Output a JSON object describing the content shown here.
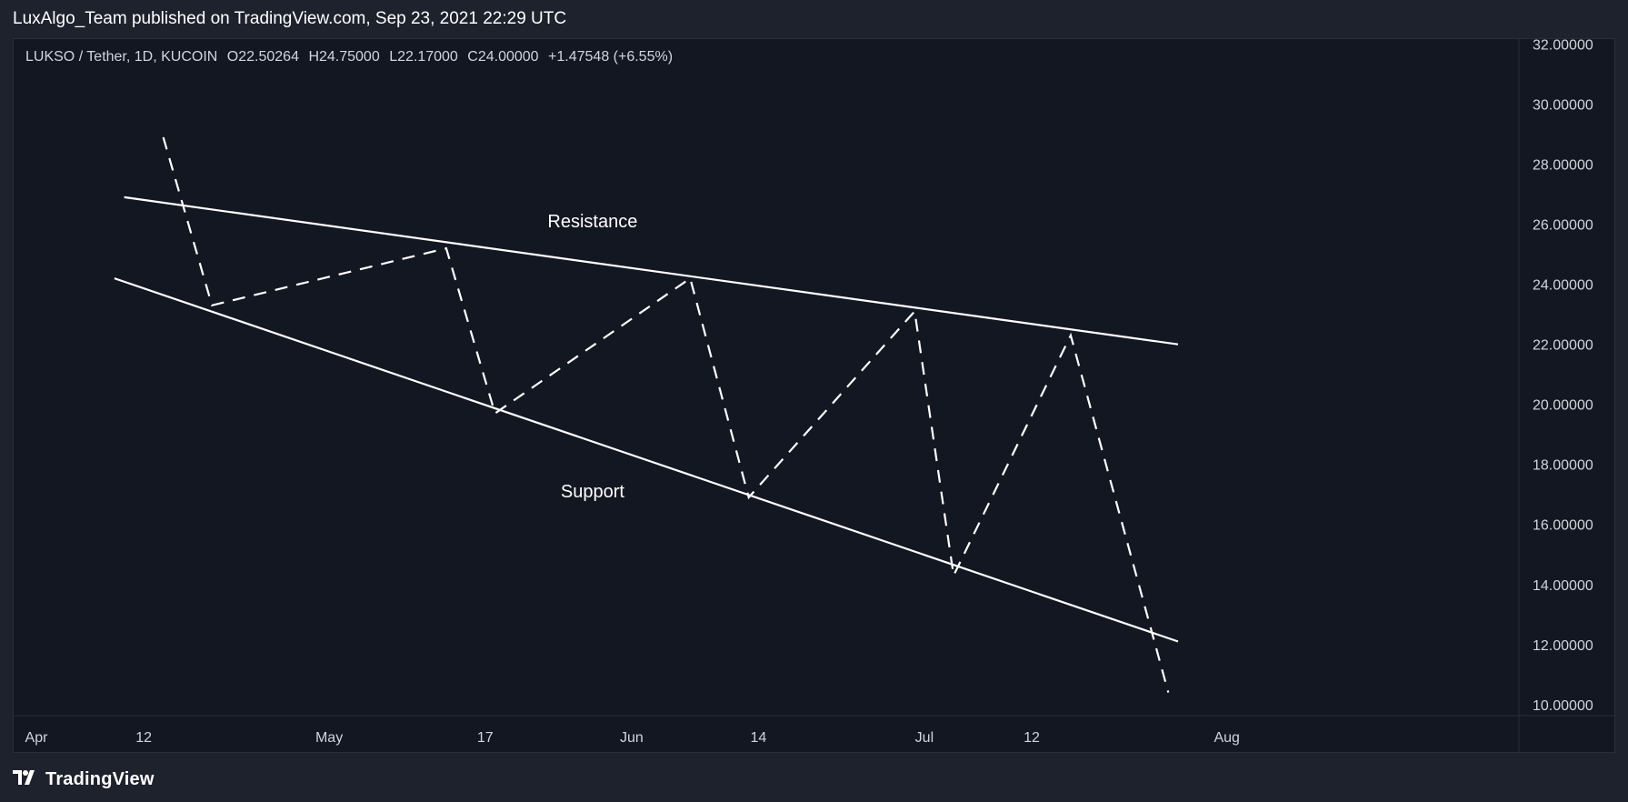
{
  "header": {
    "published_by": "LuxAlgo_Team published on TradingView.com, Sep 23, 2021 22:29 UTC"
  },
  "legend": {
    "symbol": "LUKSO / Tether, 1D, KUCOIN",
    "open": "O22.50264",
    "high": "H24.75000",
    "low": "L22.17000",
    "close": "C24.00000",
    "change": "+1.47548 (+6.55%)"
  },
  "footer": {
    "brand": "TradingView",
    "logo_icon": "tradingview-logo-icon"
  },
  "colors": {
    "background": "#131722",
    "outer": "#1e222d",
    "text": "#d1d4dc",
    "lines": "#ffffff"
  },
  "chart_data": {
    "type": "line",
    "x_axis": {
      "start": "2021-04-01",
      "end": "2021-08-15",
      "tick_labels": [
        {
          "label": "Apr",
          "date": "2021-04-01"
        },
        {
          "label": "12",
          "date": "2021-04-12"
        },
        {
          "label": "May",
          "date": "2021-05-01"
        },
        {
          "label": "17",
          "date": "2021-05-17"
        },
        {
          "label": "Jun",
          "date": "2021-06-01"
        },
        {
          "label": "14",
          "date": "2021-06-14"
        },
        {
          "label": "Jul",
          "date": "2021-07-01"
        },
        {
          "label": "12",
          "date": "2021-07-12"
        },
        {
          "label": "Aug",
          "date": "2021-08-01"
        }
      ]
    },
    "y_axis": {
      "ylim": [
        9.6,
        32.2
      ],
      "ticks": [
        "10.00000",
        "12.00000",
        "14.00000",
        "16.00000",
        "18.00000",
        "20.00000",
        "22.00000",
        "24.00000",
        "26.00000",
        "28.00000",
        "30.00000",
        "32.00000"
      ]
    },
    "grid": false,
    "series": [
      {
        "style": "solid",
        "points": [
          {
            "date": "2021-04-10",
            "value": 26.9
          },
          {
            "date": "2021-07-27",
            "value": 22.0
          }
        ]
      },
      {
        "style": "solid",
        "points": [
          {
            "date": "2021-04-09",
            "value": 24.2
          },
          {
            "date": "2021-07-27",
            "value": 12.1
          }
        ]
      },
      {
        "style": "dashed",
        "points": [
          {
            "date": "2021-04-14",
            "value": 28.9
          },
          {
            "date": "2021-04-19",
            "value": 23.3
          },
          {
            "date": "2021-05-13",
            "value": 25.2
          },
          {
            "date": "2021-05-18",
            "value": 19.7
          },
          {
            "date": "2021-06-07",
            "value": 24.2
          },
          {
            "date": "2021-06-13",
            "value": 16.9
          },
          {
            "date": "2021-06-30",
            "value": 23.1
          },
          {
            "date": "2021-07-04",
            "value": 14.3
          },
          {
            "date": "2021-07-16",
            "value": 22.3
          },
          {
            "date": "2021-07-26",
            "value": 10.4
          }
        ]
      }
    ],
    "annotations": [
      {
        "text": "Resistance",
        "date": "2021-05-28",
        "value": 25.9
      },
      {
        "text": "Support",
        "date": "2021-05-28",
        "value": 16.9
      }
    ]
  }
}
